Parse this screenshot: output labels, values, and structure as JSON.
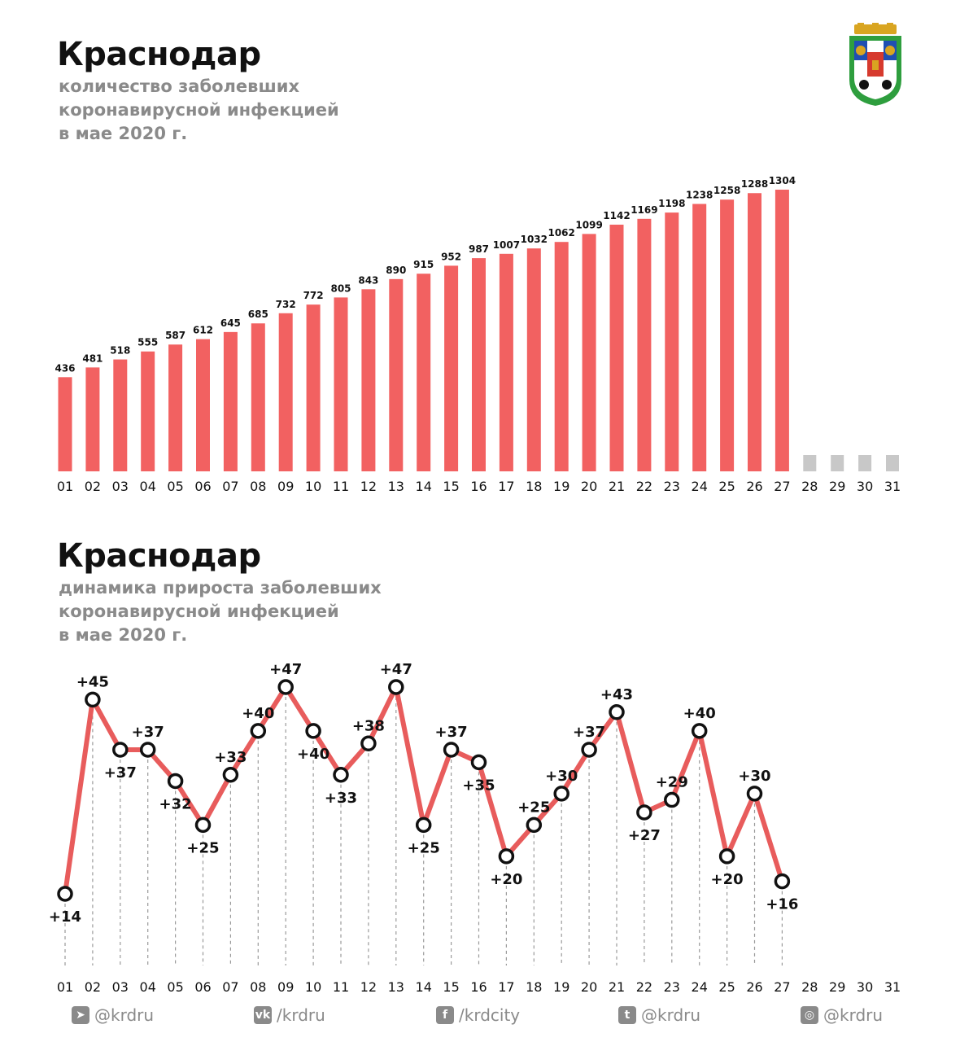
{
  "top_section": {
    "title": "Краснодар",
    "subtitle_lines": [
      "количество заболевших",
      "коронавирусной инфекцией",
      "в мае 2020 г."
    ]
  },
  "bottom_section": {
    "title": "Краснодар",
    "subtitle_lines": [
      "динамика прироста заболевших",
      "коронавирусной инфекцией",
      "в мае 2020 г."
    ]
  },
  "colors": {
    "bar": "#f26161",
    "placeholder_bar": "#c8c8c8",
    "line": "#e85c5c",
    "marker_stroke": "#111111",
    "marker_fill": "#ffffff",
    "gridline": "#9a9a9a",
    "text": "#111111",
    "muted": "#8a8a8a"
  },
  "chart_data": [
    {
      "type": "bar",
      "categories": [
        "01",
        "02",
        "03",
        "04",
        "05",
        "06",
        "07",
        "08",
        "09",
        "10",
        "11",
        "12",
        "13",
        "14",
        "15",
        "16",
        "17",
        "18",
        "19",
        "20",
        "21",
        "22",
        "23",
        "24",
        "25",
        "26",
        "27",
        "28",
        "29",
        "30",
        "31"
      ],
      "values": [
        436,
        481,
        518,
        555,
        587,
        612,
        645,
        685,
        732,
        772,
        805,
        843,
        890,
        915,
        952,
        987,
        1007,
        1032,
        1062,
        1099,
        1142,
        1169,
        1198,
        1238,
        1258,
        1288,
        1304,
        null,
        null,
        null,
        null
      ],
      "value_labels": [
        "436",
        "481",
        "518",
        "555",
        "587",
        "612",
        "645",
        "685",
        "732",
        "772",
        "805",
        "843",
        "890",
        "915",
        "952",
        "987",
        "1007",
        "1032",
        "1062",
        "1099",
        "1142",
        "1169",
        "1198",
        "1238",
        "1258",
        "1288",
        "1304",
        "",
        "",
        "",
        ""
      ],
      "ylim": [
        0,
        1304
      ],
      "grid": false
    },
    {
      "type": "line",
      "categories": [
        "01",
        "02",
        "03",
        "04",
        "05",
        "06",
        "07",
        "08",
        "09",
        "10",
        "11",
        "12",
        "13",
        "14",
        "15",
        "16",
        "17",
        "18",
        "19",
        "20",
        "21",
        "22",
        "23",
        "24",
        "25",
        "26",
        "27",
        "28",
        "29",
        "30",
        "31"
      ],
      "values": [
        14,
        45,
        37,
        37,
        32,
        25,
        33,
        40,
        47,
        40,
        33,
        38,
        47,
        25,
        37,
        35,
        20,
        25,
        30,
        37,
        43,
        27,
        29,
        40,
        20,
        30,
        16,
        null,
        null,
        null,
        null
      ],
      "value_labels": [
        "+14",
        "+45",
        "+37",
        "+37",
        "+32",
        "+25",
        "+33",
        "+40",
        "+47",
        "+40",
        "+33",
        "+38",
        "+47",
        "+25",
        "+37",
        "+35",
        "+20",
        "+25",
        "+30",
        "+37",
        "+43",
        "+27",
        "+29",
        "+40",
        "+20",
        "+30",
        "+16",
        "",
        "",
        "",
        ""
      ],
      "ylim": [
        0,
        47
      ],
      "grid": "vertical dashed drop lines"
    }
  ],
  "footer": [
    {
      "icon": "telegram-icon",
      "glyph": "➤",
      "label": "@krdru"
    },
    {
      "icon": "vk-icon",
      "glyph": "vk",
      "label": "/krdru"
    },
    {
      "icon": "facebook-icon",
      "glyph": "f",
      "label": "/krdcity"
    },
    {
      "icon": "twitter-icon",
      "glyph": "t",
      "label": "@krdru"
    },
    {
      "icon": "instagram-icon",
      "glyph": "◎",
      "label": "@krdru"
    }
  ]
}
